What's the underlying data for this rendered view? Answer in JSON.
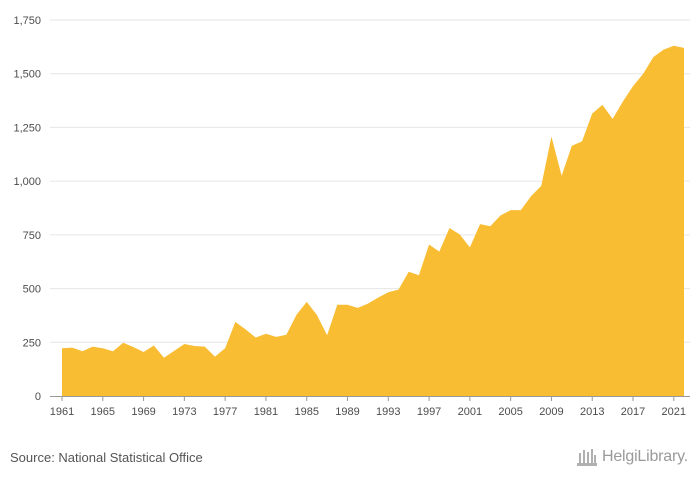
{
  "chart_data": {
    "type": "area",
    "x": [
      1961,
      1962,
      1963,
      1964,
      1965,
      1966,
      1967,
      1968,
      1969,
      1970,
      1971,
      1972,
      1973,
      1974,
      1975,
      1976,
      1977,
      1978,
      1979,
      1980,
      1981,
      1982,
      1983,
      1984,
      1985,
      1986,
      1987,
      1988,
      1989,
      1990,
      1991,
      1992,
      1993,
      1994,
      1995,
      1996,
      1997,
      1998,
      1999,
      2000,
      2001,
      2002,
      2003,
      2004,
      2005,
      2006,
      2007,
      2008,
      2009,
      2010,
      2011,
      2012,
      2013,
      2014,
      2015,
      2016,
      2017,
      2018,
      2019,
      2020,
      2021,
      2022
    ],
    "values": [
      222,
      225,
      208,
      230,
      222,
      208,
      248,
      228,
      205,
      235,
      178,
      210,
      242,
      233,
      230,
      183,
      222,
      345,
      310,
      272,
      290,
      275,
      285,
      378,
      438,
      377,
      283,
      425,
      425,
      410,
      430,
      458,
      483,
      495,
      578,
      562,
      705,
      672,
      782,
      752,
      692,
      800,
      790,
      840,
      865,
      865,
      930,
      978,
      1207,
      1025,
      1165,
      1185,
      1315,
      1355,
      1290,
      1370,
      1442,
      1500,
      1578,
      1612,
      1630,
      1620
    ],
    "x_tick_labels": [
      "1961",
      "1965",
      "1969",
      "1973",
      "1977",
      "1981",
      "1985",
      "1989",
      "1993",
      "1997",
      "2001",
      "2005",
      "2009",
      "2013",
      "2017",
      "2021"
    ],
    "y_tick_labels": [
      "0",
      "250",
      "500",
      "750",
      "1,000",
      "1,250",
      "1,500",
      "1,750"
    ],
    "y_ticks": [
      0,
      250,
      500,
      750,
      1000,
      1250,
      1500,
      1750
    ],
    "ylim": [
      0,
      1750
    ],
    "xlabel": "",
    "ylabel": "",
    "grid": true,
    "fill_color": "#F9BD33",
    "grid_color": "#e6e6e6",
    "axis_color": "#999999"
  },
  "footer": {
    "source": "Source: National Statistical Office",
    "logo_text": "HelgiLibrary."
  }
}
